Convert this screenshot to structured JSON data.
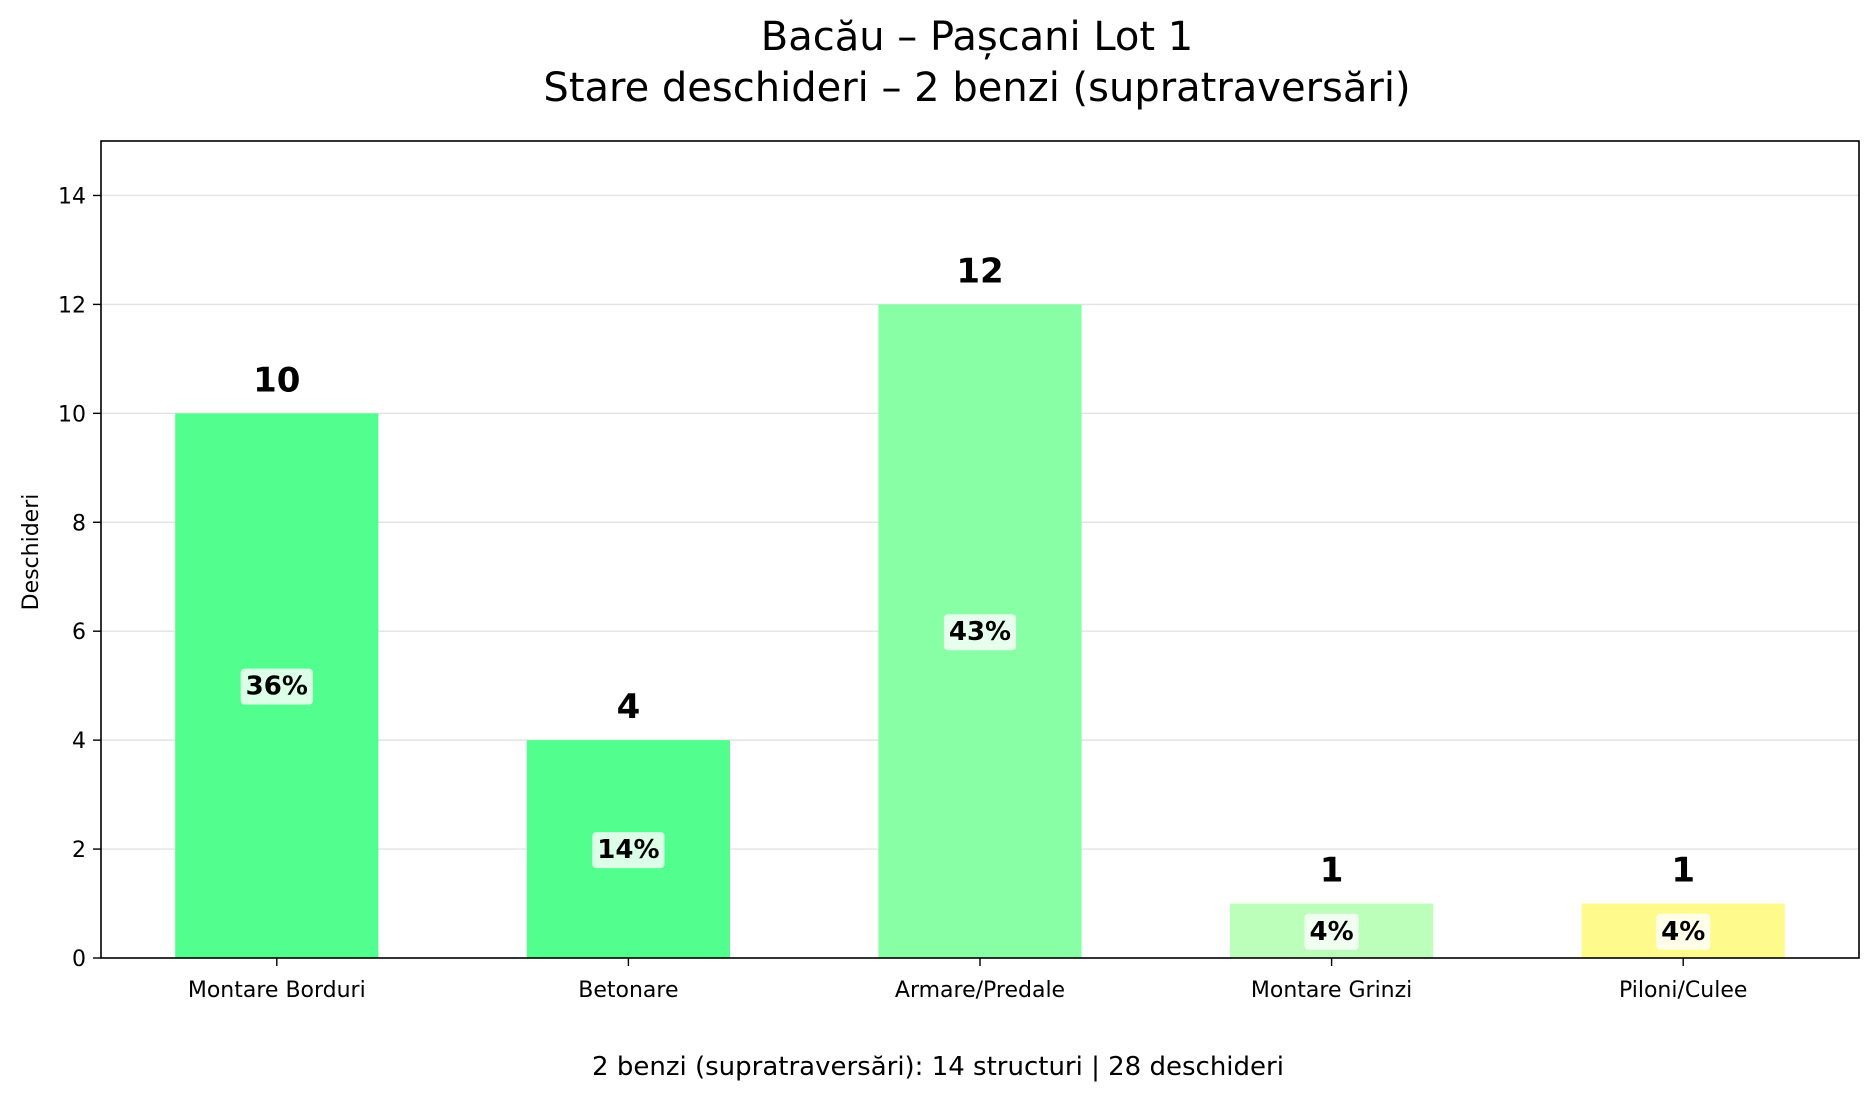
{
  "chart_data": {
    "type": "bar",
    "title_lines": [
      "Bacău – Pașcani Lot 1",
      "Stare deschideri – 2 benzi (supratraversări)"
    ],
    "xlabel": "",
    "ylabel": "Deschideri",
    "categories": [
      "Montare Borduri",
      "Betonare",
      "Armare/Predale",
      "Montare Grinzi",
      "Piloni/Culee"
    ],
    "values": [
      10,
      4,
      12,
      1,
      1
    ],
    "percent_labels": [
      "36%",
      "14%",
      "43%",
      "4%",
      "4%"
    ],
    "colors": [
      "#52ff8e",
      "#52ff8e",
      "#88ffa4",
      "#bbffbb",
      "#fffa8c"
    ],
    "ylim": [
      0,
      15
    ],
    "yticks": [
      0,
      2,
      4,
      6,
      8,
      10,
      12,
      14
    ],
    "grid": "y",
    "footer": "2 benzi (supratraversări): 14 structuri | 28 deschideri"
  }
}
